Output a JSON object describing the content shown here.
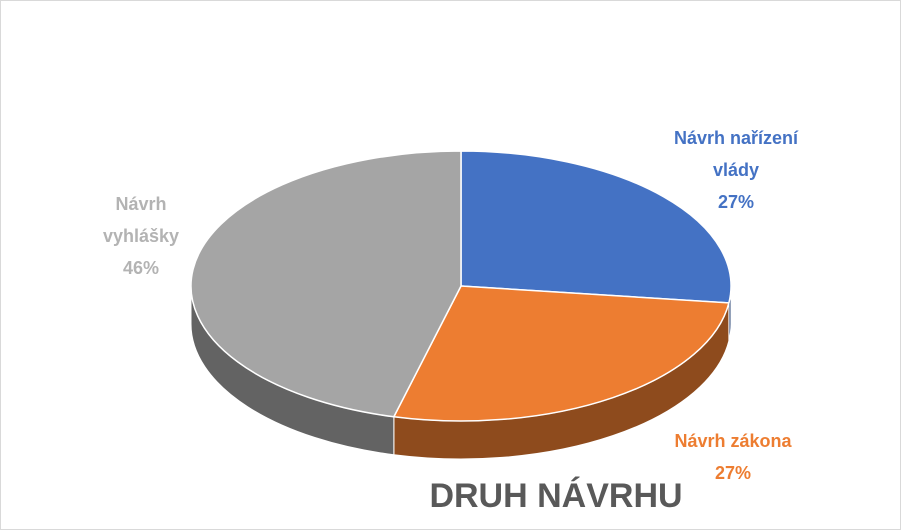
{
  "chart_data": {
    "type": "pie3d",
    "title": "DRUH NÁVRHU",
    "categories": [
      "Návrh nařízení vlády",
      "Návrh zákona",
      "Návrh vyhlášky"
    ],
    "values": [
      27,
      27,
      46
    ],
    "value_labels": [
      "27%",
      "27%",
      "46%"
    ],
    "colors": [
      "#4472c4",
      "#ed7d31",
      "#a5a5a5"
    ]
  }
}
